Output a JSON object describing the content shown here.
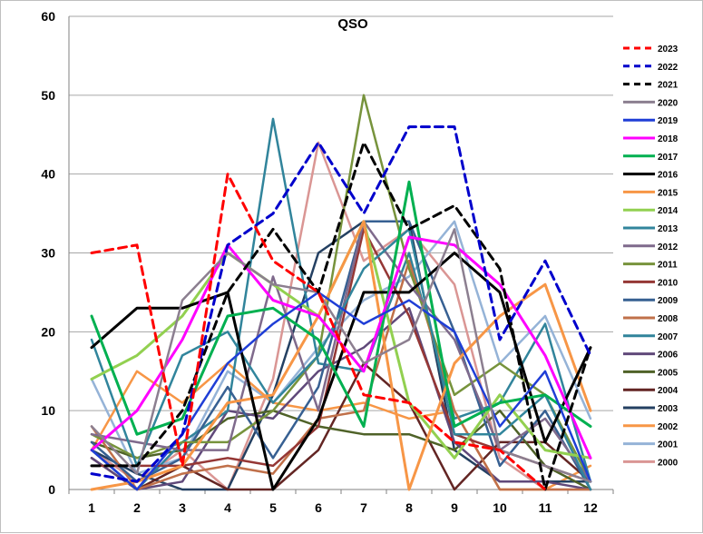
{
  "chart_data": {
    "type": "line",
    "title": "QSO",
    "xlabel": "",
    "ylabel": "",
    "categories": [
      "1",
      "2",
      "3",
      "4",
      "5",
      "6",
      "7",
      "8",
      "9",
      "10",
      "11",
      "12"
    ],
    "ylim": [
      0,
      60
    ],
    "yticks": [
      "0",
      "10",
      "20",
      "30",
      "40",
      "50",
      "60"
    ],
    "grid": true,
    "legend_position": "right",
    "series": [
      {
        "name": "2023",
        "color": "#ff0000",
        "dash": "dashed",
        "values": [
          30,
          31,
          3,
          40,
          29,
          25,
          12,
          11,
          6,
          5,
          0,
          null
        ]
      },
      {
        "name": "2022",
        "color": "#0000cc",
        "dash": "dashed",
        "values": [
          2,
          1,
          7,
          31,
          35,
          44,
          35,
          46,
          46,
          19,
          29,
          17
        ]
      },
      {
        "name": "2021",
        "color": "#000000",
        "dash": "dashed",
        "values": [
          3,
          3,
          10,
          25,
          33,
          25,
          44,
          33,
          36,
          28,
          0,
          18
        ]
      },
      {
        "name": "2020",
        "color": "#8c7f90",
        "dash": "solid",
        "values": [
          8,
          2,
          24,
          30,
          26,
          25,
          16,
          19,
          33,
          5,
          3,
          1
        ]
      },
      {
        "name": "2019",
        "color": "#1f3ed6",
        "dash": "solid",
        "values": [
          5,
          0,
          7,
          16,
          21,
          25,
          21,
          24,
          20,
          8,
          15,
          1
        ]
      },
      {
        "name": "2018",
        "color": "#ff00ff",
        "dash": "solid",
        "values": [
          5,
          10,
          19,
          31,
          24,
          22,
          15,
          32,
          31,
          26,
          17,
          4
        ]
      },
      {
        "name": "2017",
        "color": "#00b050",
        "dash": "solid",
        "values": [
          22,
          7,
          9,
          22,
          23,
          19,
          8,
          39,
          8,
          11,
          12,
          8
        ]
      },
      {
        "name": "2016",
        "color": "#000000",
        "dash": "solid",
        "values": [
          18,
          23,
          23,
          25,
          0,
          9,
          25,
          25,
          30,
          25,
          6,
          18
        ]
      },
      {
        "name": "2015",
        "color": "#f79646",
        "dash": "solid",
        "values": [
          0,
          1,
          3,
          11,
          12,
          22,
          34,
          0,
          16,
          22,
          26,
          10
        ]
      },
      {
        "name": "2014",
        "color": "#92d050",
        "dash": "solid",
        "values": [
          14,
          17,
          22,
          30,
          26,
          22,
          34,
          11,
          4,
          12,
          5,
          4
        ]
      },
      {
        "name": "2013",
        "color": "#31859c",
        "dash": "solid",
        "values": [
          19,
          3,
          17,
          20,
          11,
          17,
          28,
          33,
          7,
          7,
          12,
          0
        ]
      },
      {
        "name": "2012",
        "color": "#7f6a8c",
        "dash": "solid",
        "values": [
          7,
          6,
          5,
          5,
          27,
          10,
          34,
          26,
          19,
          5,
          9,
          1
        ]
      },
      {
        "name": "2011",
        "color": "#77933c",
        "dash": "solid",
        "values": [
          7,
          4,
          6,
          6,
          10,
          17,
          50,
          28,
          12,
          16,
          12,
          1
        ]
      },
      {
        "name": "2010",
        "color": "#953735",
        "dash": "solid",
        "values": [
          3,
          3,
          3,
          4,
          3,
          8,
          33,
          22,
          7,
          5,
          3,
          1
        ]
      },
      {
        "name": "2009",
        "color": "#376092",
        "dash": "solid",
        "values": [
          6,
          1,
          4,
          13,
          4,
          13,
          34,
          34,
          20,
          3,
          10,
          0
        ]
      },
      {
        "name": "2008",
        "color": "#c0704a",
        "dash": "solid",
        "values": [
          8,
          0,
          2,
          3,
          2,
          9,
          10,
          29,
          10,
          0,
          0,
          0
        ]
      },
      {
        "name": "2007",
        "color": "#31849b",
        "dash": "solid",
        "values": [
          5,
          0,
          6,
          10,
          47,
          16,
          15,
          30,
          9,
          11,
          21,
          1
        ]
      },
      {
        "name": "2006",
        "color": "#60497a",
        "dash": "solid",
        "values": [
          4,
          0,
          1,
          10,
          9,
          15,
          18,
          23,
          6,
          1,
          1,
          0
        ]
      },
      {
        "name": "2005",
        "color": "#4f6228",
        "dash": "solid",
        "values": [
          6,
          4,
          5,
          9,
          10,
          8,
          7,
          7,
          5,
          10,
          3,
          0
        ]
      },
      {
        "name": "2004",
        "color": "#632523",
        "dash": "solid",
        "values": [
          4,
          0,
          3,
          0,
          0,
          5,
          16,
          11,
          0,
          6,
          6,
          1
        ]
      },
      {
        "name": "2003",
        "color": "#244062",
        "dash": "solid",
        "values": [
          5,
          2,
          0,
          0,
          12,
          30,
          34,
          34,
          5,
          1,
          1,
          1
        ]
      },
      {
        "name": "2002",
        "color": "#f79646",
        "dash": "solid",
        "values": [
          5,
          15,
          11,
          16,
          11,
          10,
          11,
          9,
          10,
          0,
          0,
          3
        ]
      },
      {
        "name": "2001",
        "color": "#95b3d7",
        "dash": "solid",
        "values": [
          14,
          2,
          4,
          15,
          11,
          18,
          24,
          27,
          34,
          16,
          22,
          9
        ]
      },
      {
        "name": "2000",
        "color": "#da9694",
        "dash": "solid",
        "values": [
          5,
          1,
          5,
          0,
          14,
          44,
          29,
          33,
          26,
          4,
          0,
          0
        ]
      }
    ]
  }
}
